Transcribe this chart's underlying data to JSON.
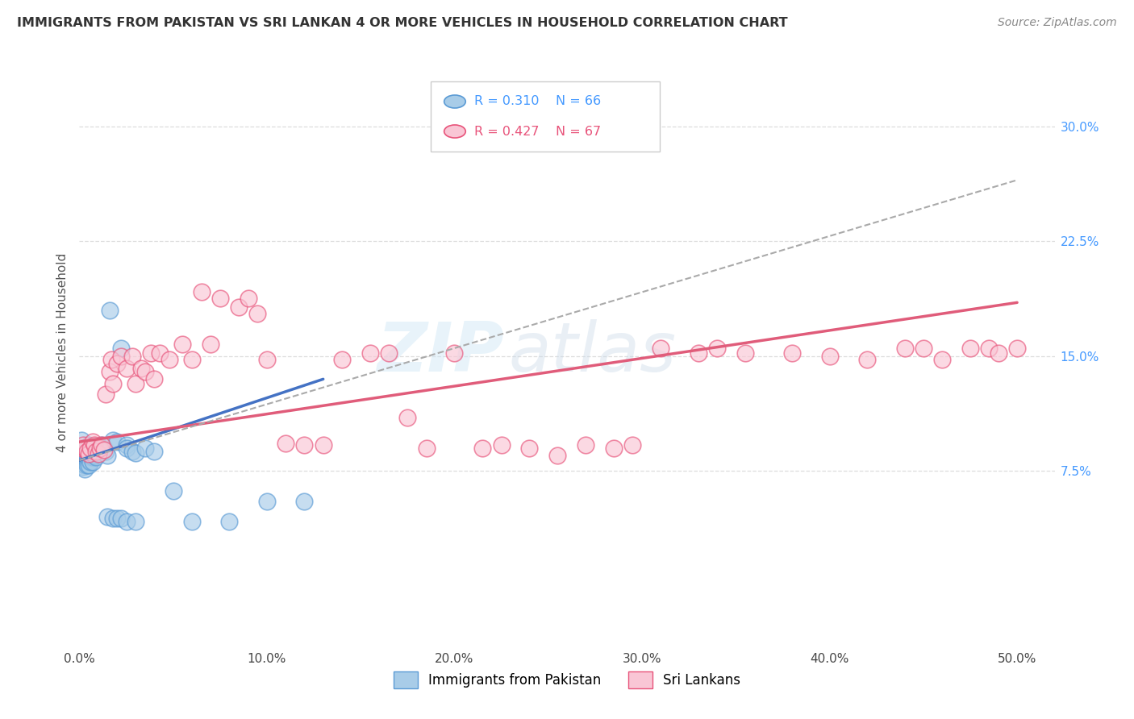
{
  "title": "IMMIGRANTS FROM PAKISTAN VS SRI LANKAN 4 OR MORE VEHICLES IN HOUSEHOLD CORRELATION CHART",
  "source": "Source: ZipAtlas.com",
  "ylabel": "4 or more Vehicles in Household",
  "x_ticks": [
    0.0,
    0.1,
    0.2,
    0.3,
    0.4,
    0.5
  ],
  "x_tick_labels": [
    "0.0%",
    "10.0%",
    "20.0%",
    "30.0%",
    "40.0%",
    "50.0%"
  ],
  "y_ticks": [
    0.075,
    0.15,
    0.225,
    0.3
  ],
  "y_tick_labels": [
    "7.5%",
    "15.0%",
    "22.5%",
    "30.0%"
  ],
  "xlim": [
    0.0,
    0.52
  ],
  "ylim": [
    -0.04,
    0.345
  ],
  "legend_R1": "R = 0.310",
  "legend_N1": "N = 66",
  "legend_R2": "R = 0.427",
  "legend_N2": "N = 67",
  "color_pakistan_fill": "#a8cce8",
  "color_pakistan_edge": "#5b9bd5",
  "color_srilanka_fill": "#f9c6d5",
  "color_srilanka_edge": "#e8537a",
  "color_pakistan_line": "#4472c4",
  "color_srilanka_line": "#e05c7a",
  "color_gray_dash": "#aaaaaa",
  "watermark": "ZIPAtlas",
  "legend_label1": "Immigrants from Pakistan",
  "legend_label2": "Sri Lankans",
  "pakistan_x": [
    0.001,
    0.001,
    0.001,
    0.001,
    0.002,
    0.002,
    0.002,
    0.002,
    0.002,
    0.003,
    0.003,
    0.003,
    0.003,
    0.003,
    0.003,
    0.004,
    0.004,
    0.004,
    0.004,
    0.004,
    0.005,
    0.005,
    0.005,
    0.005,
    0.005,
    0.006,
    0.006,
    0.006,
    0.006,
    0.007,
    0.007,
    0.007,
    0.007,
    0.008,
    0.008,
    0.008,
    0.009,
    0.009,
    0.009,
    0.01,
    0.011,
    0.012,
    0.013,
    0.014,
    0.015,
    0.016,
    0.018,
    0.02,
    0.022,
    0.025,
    0.025,
    0.028,
    0.03,
    0.035,
    0.04,
    0.05,
    0.06,
    0.08,
    0.1,
    0.12,
    0.015,
    0.018,
    0.02,
    0.022,
    0.025,
    0.03
  ],
  "pakistan_y": [
    0.095,
    0.09,
    0.085,
    0.08,
    0.09,
    0.087,
    0.085,
    0.082,
    0.078,
    0.09,
    0.087,
    0.085,
    0.082,
    0.079,
    0.076,
    0.09,
    0.087,
    0.085,
    0.082,
    0.079,
    0.092,
    0.088,
    0.085,
    0.082,
    0.079,
    0.09,
    0.087,
    0.084,
    0.081,
    0.09,
    0.087,
    0.084,
    0.081,
    0.091,
    0.088,
    0.085,
    0.09,
    0.087,
    0.084,
    0.09,
    0.091,
    0.092,
    0.09,
    0.088,
    0.085,
    0.18,
    0.095,
    0.094,
    0.155,
    0.092,
    0.09,
    0.088,
    0.087,
    0.09,
    0.088,
    0.062,
    0.042,
    0.042,
    0.055,
    0.055,
    0.045,
    0.044,
    0.044,
    0.044,
    0.042,
    0.042
  ],
  "srilanka_x": [
    0.001,
    0.002,
    0.003,
    0.004,
    0.005,
    0.006,
    0.007,
    0.008,
    0.009,
    0.01,
    0.011,
    0.012,
    0.013,
    0.014,
    0.016,
    0.017,
    0.018,
    0.02,
    0.022,
    0.025,
    0.028,
    0.03,
    0.033,
    0.035,
    0.038,
    0.04,
    0.043,
    0.048,
    0.055,
    0.06,
    0.065,
    0.07,
    0.075,
    0.085,
    0.09,
    0.095,
    0.1,
    0.11,
    0.12,
    0.13,
    0.14,
    0.155,
    0.165,
    0.175,
    0.185,
    0.2,
    0.215,
    0.225,
    0.24,
    0.255,
    0.27,
    0.285,
    0.295,
    0.31,
    0.33,
    0.34,
    0.355,
    0.38,
    0.4,
    0.42,
    0.44,
    0.45,
    0.46,
    0.475,
    0.485,
    0.49,
    0.5
  ],
  "srilanka_y": [
    0.09,
    0.092,
    0.09,
    0.088,
    0.086,
    0.09,
    0.094,
    0.092,
    0.088,
    0.086,
    0.09,
    0.092,
    0.089,
    0.125,
    0.14,
    0.148,
    0.132,
    0.145,
    0.15,
    0.142,
    0.15,
    0.132,
    0.142,
    0.14,
    0.152,
    0.135,
    0.152,
    0.148,
    0.158,
    0.148,
    0.192,
    0.158,
    0.188,
    0.182,
    0.188,
    0.178,
    0.148,
    0.093,
    0.092,
    0.092,
    0.148,
    0.152,
    0.152,
    0.11,
    0.09,
    0.152,
    0.09,
    0.092,
    0.09,
    0.085,
    0.092,
    0.09,
    0.092,
    0.155,
    0.152,
    0.155,
    0.152,
    0.152,
    0.15,
    0.148,
    0.155,
    0.155,
    0.148,
    0.155,
    0.155,
    0.152,
    0.155
  ],
  "pak_line_x0": 0.0,
  "pak_line_y0": 0.082,
  "pak_line_x1": 0.13,
  "pak_line_y1": 0.135,
  "sri_line_x0": 0.0,
  "sri_line_y0": 0.094,
  "sri_line_x1": 0.5,
  "sri_line_y1": 0.185,
  "gray_line_x0": 0.0,
  "gray_line_y0": 0.082,
  "gray_line_x1": 0.5,
  "gray_line_y1": 0.265
}
